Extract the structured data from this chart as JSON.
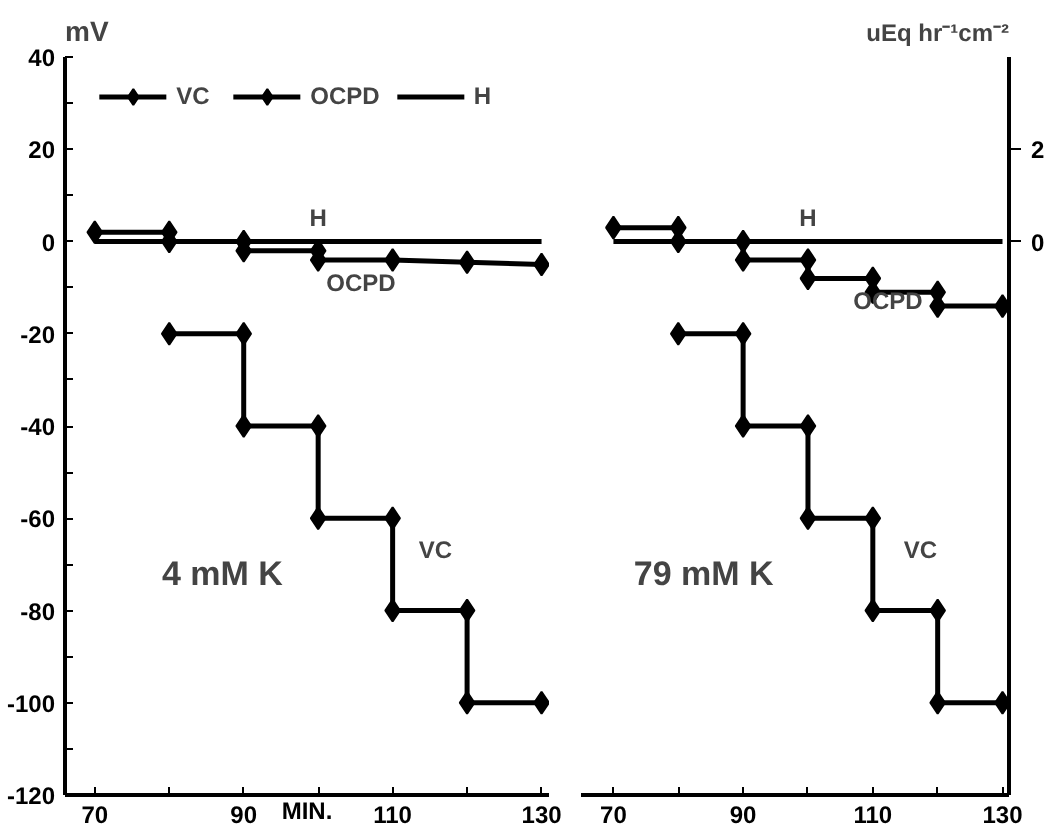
{
  "chart_data": [
    {
      "type": "line",
      "title": "4 mM K",
      "ylabel": "mV",
      "xlabel": "MIN.",
      "xlim": [
        66,
        131
      ],
      "xticks": [
        70,
        {
          "value": 80,
          "label": null
        },
        90,
        {
          "value": 100,
          "label": null
        },
        110,
        {
          "value": 120,
          "label": null
        },
        130
      ],
      "ylim": [
        -120,
        40
      ],
      "yticks": [
        40,
        {
          "value": 30,
          "label": null
        },
        20,
        {
          "value": 10,
          "label": null
        },
        0,
        {
          "value": -10,
          "label": null
        },
        -20,
        {
          "value": -30,
          "label": null
        },
        -40,
        {
          "value": -50,
          "label": null
        },
        -60,
        {
          "value": -70,
          "label": null
        },
        -80,
        {
          "value": -90,
          "label": null
        },
        -100,
        {
          "value": -110,
          "label": null
        },
        -120
      ],
      "legend": "top",
      "marker": "diamond",
      "series": [
        {
          "name": "VC",
          "color": "#000000",
          "x": [
            80,
            90,
            90,
            100,
            100,
            110,
            110,
            120,
            120,
            130
          ],
          "values": [
            -20,
            -20,
            -40,
            -40,
            -60,
            -60,
            -80,
            -80,
            -100,
            -100
          ]
        },
        {
          "name": "OCPD",
          "color": "#000000",
          "x": [
            70,
            80,
            80,
            90,
            90,
            100,
            100,
            110,
            120,
            130
          ],
          "values": [
            2,
            2,
            0,
            0,
            -2,
            -2,
            -4,
            -4,
            -4.5,
            -5
          ]
        },
        {
          "name": "H",
          "color": "#000000",
          "marker": "none",
          "x": [
            70,
            130
          ],
          "values": [
            0,
            0
          ]
        }
      ]
    },
    {
      "type": "line",
      "title": "79 mM K",
      "xlim": [
        65,
        131
      ],
      "xticks": [
        70,
        {
          "value": 80,
          "label": null
        },
        90,
        {
          "value": 100,
          "label": null
        },
        110,
        {
          "value": 120,
          "label": null
        },
        130
      ],
      "ylim": [
        -120,
        40
      ],
      "tick_labels": [
        "x",
        "y2"
      ],
      "y2label": "uEq hr⁻¹cm⁻²",
      "y2lim": [
        -12,
        4
      ],
      "y2ticks": [
        0,
        2
      ],
      "marker": "diamond",
      "series": [
        {
          "name": "VC",
          "color": "#000000",
          "x": [
            80,
            90,
            90,
            100,
            100,
            110,
            110,
            120,
            120,
            130
          ],
          "values": [
            -20,
            -20,
            -40,
            -40,
            -60,
            -60,
            -80,
            -80,
            -100,
            -100
          ]
        },
        {
          "name": "OCPD",
          "color": "#000000",
          "x": [
            70,
            80,
            80,
            90,
            90,
            100,
            100,
            110,
            110,
            120,
            120,
            130
          ],
          "values": [
            3,
            3,
            0,
            0,
            -4,
            -4,
            -8,
            -8,
            -11,
            -11,
            -14,
            -14
          ]
        },
        {
          "name": "H",
          "color": "#000000",
          "marker": "none",
          "x": [
            70,
            130
          ],
          "values": [
            0,
            0
          ]
        }
      ]
    }
  ]
}
